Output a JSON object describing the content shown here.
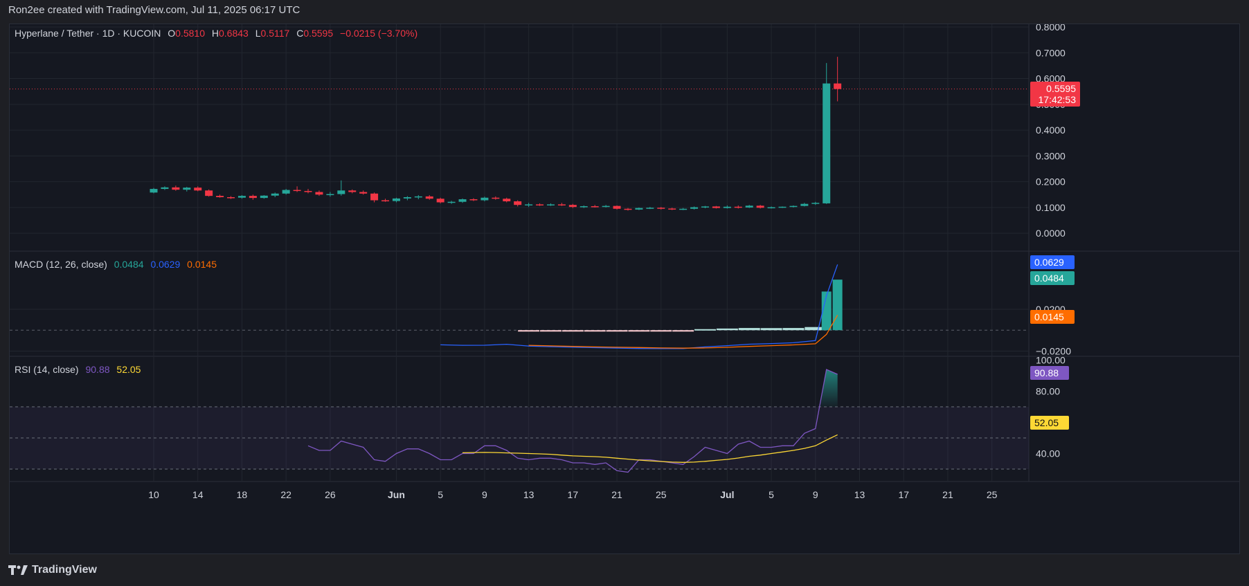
{
  "header": {
    "created": "Ron2ee created with TradingView.com, Jul 11, 2025 06:17 UTC"
  },
  "legend_main": {
    "symbol": "Hyperlane / Tether · 1D · KUCOIN",
    "o_label": "O",
    "o": "0.5810",
    "h_label": "H",
    "h": "0.6843",
    "l_label": "L",
    "l": "0.5117",
    "c_label": "C",
    "c": "0.5595",
    "change": "−0.0215 (−3.70%)"
  },
  "legend_macd": {
    "title": "MACD (12, 26, close)",
    "hist": "0.0484",
    "macd": "0.0629",
    "signal": "0.0145"
  },
  "legend_rsi": {
    "title": "RSI (14, close)",
    "rsi": "90.88",
    "ma": "52.05"
  },
  "tags": {
    "price": "0.5595",
    "countdown": "17:42:53",
    "macd": "0.0629",
    "hist": "0.0484",
    "signal": "0.0145",
    "rsi": "90.88",
    "rsi_ma": "52.05"
  },
  "footer": {
    "brand": "TradingView"
  },
  "colors": {
    "up": "#26a69a",
    "down": "#f23645",
    "macd": "#2962ff",
    "signal": "#ff6d00",
    "rsi": "#7e57c2",
    "rsi_ma": "#fdd835",
    "bg": "#151821",
    "grid": "#22262f"
  },
  "chart_data": [
    {
      "type": "candlestick",
      "title": "Hyperlane / Tether · 1D · KUCOIN",
      "x_ticks": [
        "10",
        "14",
        "18",
        "22",
        "26",
        "Jun",
        "5",
        "9",
        "13",
        "17",
        "21",
        "25",
        "Jul",
        "5",
        "9",
        "13",
        "17",
        "21",
        "25"
      ],
      "y_ticks": [
        "0.8000",
        "0.7000",
        "0.6000",
        "0.5000",
        "0.4000",
        "0.3000",
        "0.2000",
        "0.1000",
        "0.0000"
      ],
      "ylim": [
        -0.08,
        0.8
      ],
      "current_price": 0.5595,
      "candles": [
        {
          "date": "May 10",
          "o": 0.158,
          "h": 0.176,
          "l": 0.155,
          "c": 0.172
        },
        {
          "date": "May 11",
          "o": 0.172,
          "h": 0.182,
          "l": 0.168,
          "c": 0.178
        },
        {
          "date": "May 12",
          "o": 0.178,
          "h": 0.185,
          "l": 0.165,
          "c": 0.169
        },
        {
          "date": "May 13",
          "o": 0.169,
          "h": 0.18,
          "l": 0.162,
          "c": 0.177
        },
        {
          "date": "May 14",
          "o": 0.177,
          "h": 0.182,
          "l": 0.163,
          "c": 0.166
        },
        {
          "date": "May 15",
          "o": 0.166,
          "h": 0.17,
          "l": 0.142,
          "c": 0.145
        },
        {
          "date": "May 16",
          "o": 0.145,
          "h": 0.15,
          "l": 0.138,
          "c": 0.14
        },
        {
          "date": "May 17",
          "o": 0.14,
          "h": 0.144,
          "l": 0.133,
          "c": 0.138
        },
        {
          "date": "May 18",
          "o": 0.138,
          "h": 0.148,
          "l": 0.134,
          "c": 0.145
        },
        {
          "date": "May 19",
          "o": 0.145,
          "h": 0.15,
          "l": 0.13,
          "c": 0.137
        },
        {
          "date": "May 20",
          "o": 0.137,
          "h": 0.148,
          "l": 0.134,
          "c": 0.146
        },
        {
          "date": "May 21",
          "o": 0.146,
          "h": 0.158,
          "l": 0.14,
          "c": 0.154
        },
        {
          "date": "May 22",
          "o": 0.154,
          "h": 0.172,
          "l": 0.15,
          "c": 0.168
        },
        {
          "date": "May 23",
          "o": 0.168,
          "h": 0.182,
          "l": 0.16,
          "c": 0.164
        },
        {
          "date": "May 24",
          "o": 0.164,
          "h": 0.172,
          "l": 0.155,
          "c": 0.16
        },
        {
          "date": "May 25",
          "o": 0.16,
          "h": 0.166,
          "l": 0.145,
          "c": 0.15
        },
        {
          "date": "May 26",
          "o": 0.15,
          "h": 0.16,
          "l": 0.142,
          "c": 0.152
        },
        {
          "date": "May 27",
          "o": 0.152,
          "h": 0.205,
          "l": 0.146,
          "c": 0.166
        },
        {
          "date": "May 28",
          "o": 0.166,
          "h": 0.17,
          "l": 0.155,
          "c": 0.16
        },
        {
          "date": "May 29",
          "o": 0.16,
          "h": 0.166,
          "l": 0.15,
          "c": 0.154
        },
        {
          "date": "May 30",
          "o": 0.154,
          "h": 0.158,
          "l": 0.12,
          "c": 0.128
        },
        {
          "date": "May 31",
          "o": 0.128,
          "h": 0.134,
          "l": 0.122,
          "c": 0.125
        },
        {
          "date": "Jun 1",
          "o": 0.125,
          "h": 0.138,
          "l": 0.12,
          "c": 0.135
        },
        {
          "date": "Jun 2",
          "o": 0.135,
          "h": 0.144,
          "l": 0.128,
          "c": 0.14
        },
        {
          "date": "Jun 3",
          "o": 0.14,
          "h": 0.148,
          "l": 0.132,
          "c": 0.143
        },
        {
          "date": "Jun 4",
          "o": 0.143,
          "h": 0.148,
          "l": 0.13,
          "c": 0.134
        },
        {
          "date": "Jun 5",
          "o": 0.134,
          "h": 0.138,
          "l": 0.116,
          "c": 0.12
        },
        {
          "date": "Jun 6",
          "o": 0.12,
          "h": 0.126,
          "l": 0.114,
          "c": 0.122
        },
        {
          "date": "Jun 7",
          "o": 0.122,
          "h": 0.135,
          "l": 0.118,
          "c": 0.132
        },
        {
          "date": "Jun 8",
          "o": 0.132,
          "h": 0.136,
          "l": 0.125,
          "c": 0.128
        },
        {
          "date": "Jun 9",
          "o": 0.128,
          "h": 0.142,
          "l": 0.124,
          "c": 0.138
        },
        {
          "date": "Jun 10",
          "o": 0.138,
          "h": 0.143,
          "l": 0.13,
          "c": 0.134
        },
        {
          "date": "Jun 11",
          "o": 0.134,
          "h": 0.138,
          "l": 0.12,
          "c": 0.124
        },
        {
          "date": "Jun 12",
          "o": 0.124,
          "h": 0.128,
          "l": 0.104,
          "c": 0.11
        },
        {
          "date": "Jun 13",
          "o": 0.11,
          "h": 0.118,
          "l": 0.102,
          "c": 0.112
        },
        {
          "date": "Jun 14",
          "o": 0.112,
          "h": 0.116,
          "l": 0.106,
          "c": 0.11
        },
        {
          "date": "Jun 15",
          "o": 0.11,
          "h": 0.116,
          "l": 0.106,
          "c": 0.112
        },
        {
          "date": "Jun 16",
          "o": 0.112,
          "h": 0.118,
          "l": 0.106,
          "c": 0.11
        },
        {
          "date": "Jun 17",
          "o": 0.11,
          "h": 0.114,
          "l": 0.098,
          "c": 0.102
        },
        {
          "date": "Jun 18",
          "o": 0.102,
          "h": 0.108,
          "l": 0.098,
          "c": 0.105
        },
        {
          "date": "Jun 19",
          "o": 0.105,
          "h": 0.11,
          "l": 0.1,
          "c": 0.103
        },
        {
          "date": "Jun 20",
          "o": 0.103,
          "h": 0.11,
          "l": 0.1,
          "c": 0.106
        },
        {
          "date": "Jun 21",
          "o": 0.106,
          "h": 0.108,
          "l": 0.092,
          "c": 0.095
        },
        {
          "date": "Jun 22",
          "o": 0.095,
          "h": 0.098,
          "l": 0.088,
          "c": 0.092
        },
        {
          "date": "Jun 23",
          "o": 0.092,
          "h": 0.1,
          "l": 0.09,
          "c": 0.098
        },
        {
          "date": "Jun 24",
          "o": 0.098,
          "h": 0.102,
          "l": 0.094,
          "c": 0.099
        },
        {
          "date": "Jun 25",
          "o": 0.099,
          "h": 0.102,
          "l": 0.092,
          "c": 0.096
        },
        {
          "date": "Jun 26",
          "o": 0.096,
          "h": 0.099,
          "l": 0.09,
          "c": 0.093
        },
        {
          "date": "Jun 27",
          "o": 0.093,
          "h": 0.098,
          "l": 0.09,
          "c": 0.095
        },
        {
          "date": "Jun 28",
          "o": 0.095,
          "h": 0.104,
          "l": 0.092,
          "c": 0.101
        },
        {
          "date": "Jun 29",
          "o": 0.101,
          "h": 0.106,
          "l": 0.097,
          "c": 0.104
        },
        {
          "date": "Jun 30",
          "o": 0.104,
          "h": 0.106,
          "l": 0.096,
          "c": 0.098
        },
        {
          "date": "Jul 1",
          "o": 0.098,
          "h": 0.108,
          "l": 0.096,
          "c": 0.103
        },
        {
          "date": "Jul 2",
          "o": 0.103,
          "h": 0.108,
          "l": 0.096,
          "c": 0.1
        },
        {
          "date": "Jul 3",
          "o": 0.1,
          "h": 0.11,
          "l": 0.098,
          "c": 0.107
        },
        {
          "date": "Jul 4",
          "o": 0.107,
          "h": 0.11,
          "l": 0.096,
          "c": 0.099
        },
        {
          "date": "Jul 5",
          "o": 0.099,
          "h": 0.104,
          "l": 0.096,
          "c": 0.101
        },
        {
          "date": "Jul 6",
          "o": 0.101,
          "h": 0.104,
          "l": 0.098,
          "c": 0.103
        },
        {
          "date": "Jul 7",
          "o": 0.103,
          "h": 0.108,
          "l": 0.1,
          "c": 0.106
        },
        {
          "date": "Jul 8",
          "o": 0.106,
          "h": 0.118,
          "l": 0.104,
          "c": 0.114
        },
        {
          "date": "Jul 9",
          "o": 0.114,
          "h": 0.122,
          "l": 0.11,
          "c": 0.118
        },
        {
          "date": "Jul 10",
          "o": 0.116,
          "h": 0.66,
          "l": 0.114,
          "c": 0.581
        },
        {
          "date": "Jul 11",
          "o": 0.581,
          "h": 0.6843,
          "l": 0.5117,
          "c": 0.5595
        }
      ]
    },
    {
      "type": "line",
      "title": "MACD (12, 26, close)",
      "y_ticks": [
        "0.0200",
        "−0.0200"
      ],
      "ylim": [
        -0.025,
        0.075
      ],
      "dates": [
        "Jun 5",
        "Jun 7",
        "Jun 9",
        "Jun 11",
        "Jun 13",
        "Jun 15",
        "Jun 17",
        "Jun 19",
        "Jun 21",
        "Jun 23",
        "Jun 25",
        "Jun 27",
        "Jun 29",
        "Jul 1",
        "Jul 3",
        "Jul 5",
        "Jul 7",
        "Jul 9",
        "Jul 10",
        "Jul 11"
      ],
      "series": [
        {
          "name": "MACD",
          "values": [
            -0.014,
            -0.0145,
            -0.0144,
            -0.0135,
            -0.0152,
            -0.0158,
            -0.0163,
            -0.0167,
            -0.0171,
            -0.0175,
            -0.0176,
            -0.0176,
            -0.016,
            -0.0148,
            -0.0134,
            -0.0128,
            -0.012,
            -0.01,
            0.033,
            0.0629
          ]
        },
        {
          "name": "Signal",
          "values": [
            null,
            null,
            null,
            null,
            -0.0145,
            -0.015,
            -0.0155,
            -0.016,
            -0.0163,
            -0.0166,
            -0.017,
            -0.0172,
            -0.017,
            -0.0164,
            -0.0155,
            -0.0148,
            -0.0141,
            -0.013,
            -0.004,
            0.0145
          ]
        },
        {
          "name": "Histogram",
          "values": [
            null,
            null,
            null,
            null,
            -0.0007,
            -0.0008,
            -0.0008,
            -0.0007,
            -0.0008,
            -0.0009,
            -0.0006,
            -0.0004,
            0.001,
            0.0016,
            0.0021,
            0.002,
            0.0021,
            0.003,
            0.037,
            0.0484
          ]
        }
      ]
    },
    {
      "type": "line",
      "title": "RSI (14, close)",
      "y_ticks": [
        "100.00",
        "80.00",
        "60.00",
        "40.00"
      ],
      "ylim": [
        20,
        100
      ],
      "bands": [
        70,
        50,
        30
      ],
      "dates": [
        "May 24",
        "May 25",
        "May 26",
        "May 27",
        "May 28",
        "May 29",
        "May 30",
        "May 31",
        "Jun 1",
        "Jun 2",
        "Jun 3",
        "Jun 4",
        "Jun 5",
        "Jun 6",
        "Jun 7",
        "Jun 8",
        "Jun 9",
        "Jun 10",
        "Jun 11",
        "Jun 12",
        "Jun 13",
        "Jun 14",
        "Jun 15",
        "Jun 16",
        "Jun 17",
        "Jun 18",
        "Jun 19",
        "Jun 20",
        "Jun 21",
        "Jun 22",
        "Jun 23",
        "Jun 24",
        "Jun 25",
        "Jun 26",
        "Jun 27",
        "Jun 28",
        "Jun 29",
        "Jun 30",
        "Jul 1",
        "Jul 2",
        "Jul 3",
        "Jul 4",
        "Jul 5",
        "Jul 6",
        "Jul 7",
        "Jul 8",
        "Jul 9",
        "Jul 10",
        "Jul 11"
      ],
      "series": [
        {
          "name": "RSI",
          "values": [
            45,
            42,
            42,
            48,
            46,
            44,
            36,
            35,
            40,
            43,
            43,
            40,
            36,
            36,
            40,
            40,
            45,
            45,
            42,
            37,
            36,
            37,
            37,
            36,
            34,
            34,
            33,
            34,
            29,
            28,
            36,
            36,
            35,
            34,
            33,
            38,
            44,
            42,
            40,
            46,
            48,
            44,
            44,
            45,
            45,
            53,
            56,
            94,
            90.88
          ]
        },
        {
          "name": "RSI-based MA",
          "values": [
            null,
            null,
            null,
            null,
            null,
            null,
            null,
            null,
            null,
            null,
            null,
            null,
            null,
            null,
            40.5,
            40.6,
            40.7,
            40.6,
            40.4,
            40.2,
            40.0,
            39.8,
            39.5,
            39.0,
            38.5,
            38.2,
            38.0,
            37.6,
            37.0,
            36.4,
            35.8,
            35.3,
            34.9,
            34.5,
            34.3,
            34.5,
            35.0,
            35.6,
            36.2,
            37.1,
            38.2,
            39.0,
            40.0,
            41.0,
            42.0,
            43.3,
            45.0,
            48.6,
            52.05
          ]
        }
      ]
    }
  ]
}
